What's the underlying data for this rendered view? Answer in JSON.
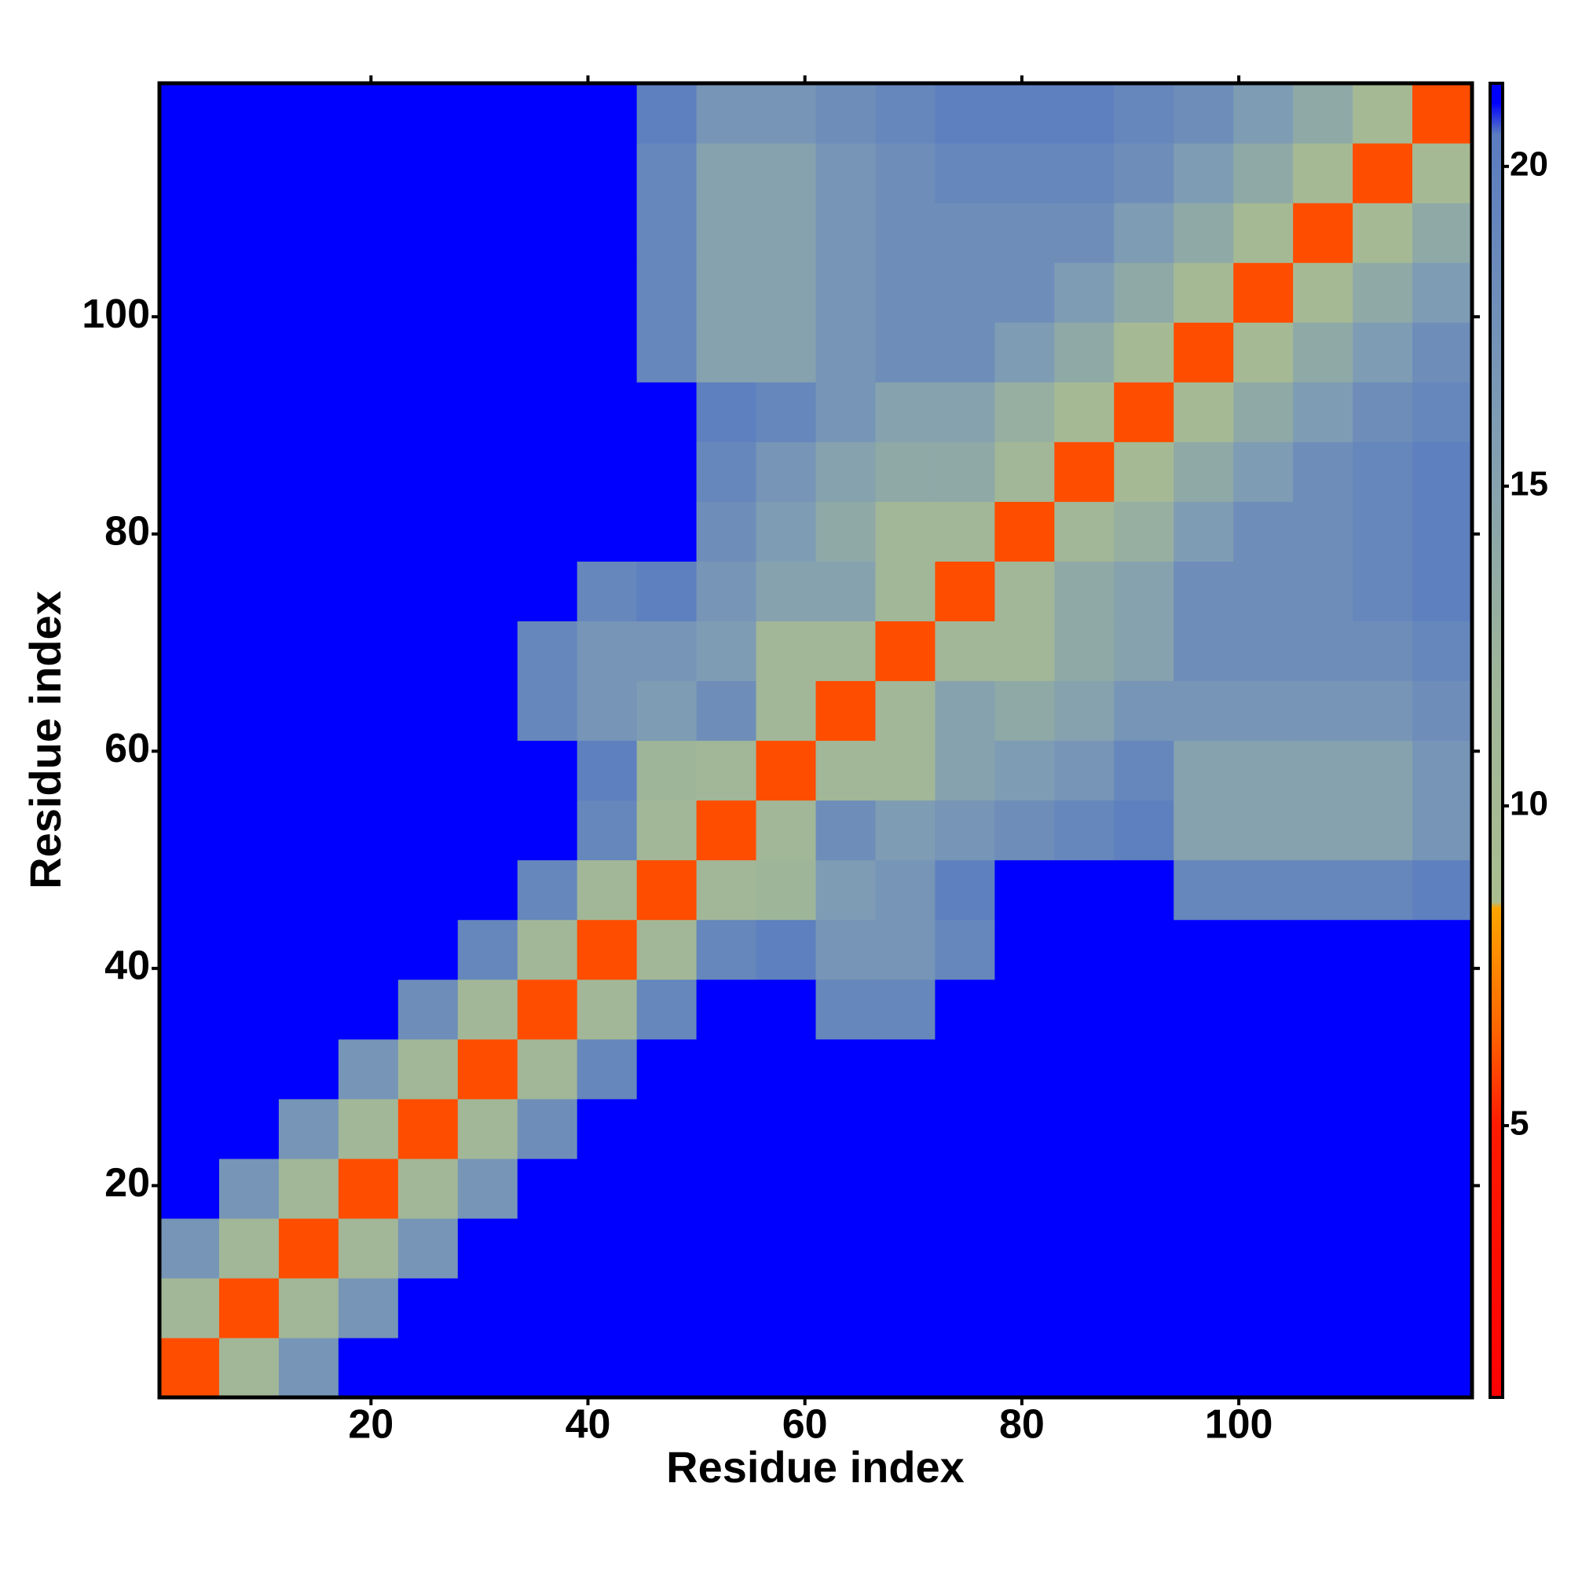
{
  "chart_data": {
    "type": "heatmap",
    "xlabel": "Residue index",
    "ylabel": "Residue index",
    "xlim": [
      0.5,
      121.5
    ],
    "ylim": [
      0.5,
      121.5
    ],
    "xticks": [
      20,
      40,
      60,
      80,
      100
    ],
    "yticks": [
      20,
      40,
      60,
      80,
      100
    ],
    "x_bins": [
      0.5,
      6,
      11.5,
      17,
      22.5,
      28,
      33.5,
      39,
      44.5,
      50,
      55.5,
      61,
      66.5,
      72,
      77.5,
      83,
      88.5,
      94,
      99.5,
      105,
      110.5,
      116,
      121.5
    ],
    "y_bins": [
      0.5,
      6,
      11.5,
      17,
      22.5,
      28,
      33.5,
      39,
      44.5,
      50,
      55.5,
      61,
      66.5,
      72,
      77.5,
      83,
      88.5,
      94,
      99.5,
      105,
      110.5,
      116,
      121.5
    ],
    "z": [
      [
        6,
        11,
        17,
        21,
        21,
        21,
        21,
        21,
        21,
        21,
        21,
        21,
        21,
        21,
        21,
        21,
        21,
        21,
        21,
        21,
        21,
        21
      ],
      [
        11,
        6,
        11,
        17,
        21,
        21,
        21,
        21,
        21,
        21,
        21,
        21,
        21,
        21,
        21,
        21,
        21,
        21,
        21,
        21,
        21,
        21
      ],
      [
        17,
        11,
        6,
        11,
        17,
        21,
        21,
        21,
        21,
        21,
        21,
        21,
        21,
        21,
        21,
        21,
        21,
        21,
        21,
        21,
        21,
        21
      ],
      [
        21,
        17,
        11,
        6,
        11,
        17,
        21,
        21,
        21,
        21,
        21,
        21,
        21,
        21,
        21,
        21,
        21,
        21,
        21,
        21,
        21,
        21
      ],
      [
        21,
        21,
        17,
        11,
        6,
        11,
        18,
        21,
        21,
        21,
        21,
        21,
        21,
        21,
        21,
        21,
        21,
        21,
        21,
        21,
        21,
        21
      ],
      [
        21,
        21,
        21,
        17,
        11,
        6,
        11,
        19,
        21,
        21,
        21,
        21,
        21,
        21,
        21,
        21,
        21,
        21,
        21,
        21,
        21,
        21
      ],
      [
        21,
        21,
        21,
        21,
        18,
        11,
        6,
        11,
        19,
        21,
        21,
        19,
        19,
        21,
        21,
        21,
        21,
        21,
        21,
        21,
        21,
        21
      ],
      [
        21,
        21,
        21,
        21,
        21,
        19,
        11,
        6,
        11,
        19,
        20,
        17,
        17,
        19,
        21,
        21,
        21,
        21,
        21,
        21,
        21,
        21
      ],
      [
        21,
        21,
        21,
        21,
        21,
        21,
        19,
        11,
        6,
        11,
        12,
        16,
        17,
        20,
        21,
        21,
        21,
        19,
        19,
        19,
        19,
        20
      ],
      [
        21,
        21,
        21,
        21,
        21,
        21,
        21,
        19,
        11,
        6,
        11,
        18,
        16,
        17,
        18,
        19,
        20,
        15,
        15,
        15,
        15,
        17
      ],
      [
        21,
        21,
        21,
        21,
        21,
        21,
        21,
        20,
        12,
        11,
        6,
        11,
        11,
        15,
        16,
        17,
        19,
        15,
        15,
        15,
        15,
        17
      ],
      [
        21,
        21,
        21,
        21,
        21,
        21,
        19,
        17,
        16,
        18,
        11,
        6,
        11,
        15,
        14,
        15,
        17,
        17,
        17,
        17,
        17,
        18
      ],
      [
        21,
        21,
        21,
        21,
        21,
        21,
        19,
        17,
        17,
        16,
        11,
        11,
        6,
        11,
        11,
        14,
        15,
        18,
        18,
        18,
        18,
        19
      ],
      [
        21,
        21,
        21,
        21,
        21,
        21,
        21,
        19,
        20,
        17,
        15,
        15,
        11,
        6,
        11,
        14,
        15,
        18,
        18,
        18,
        19,
        20
      ],
      [
        21,
        21,
        21,
        21,
        21,
        21,
        21,
        21,
        21,
        18,
        16,
        14,
        11,
        11,
        6,
        11,
        13,
        16,
        18,
        18,
        19,
        20
      ],
      [
        21,
        21,
        21,
        21,
        21,
        21,
        21,
        21,
        21,
        19,
        17,
        15,
        14,
        14,
        11,
        6,
        10,
        14,
        16,
        18,
        19,
        20
      ],
      [
        21,
        21,
        21,
        21,
        21,
        21,
        21,
        21,
        21,
        20,
        19,
        17,
        15,
        15,
        13,
        10,
        6,
        10,
        14,
        16,
        18,
        19
      ],
      [
        21,
        21,
        21,
        21,
        21,
        21,
        21,
        21,
        19,
        15,
        15,
        17,
        18,
        18,
        16,
        14,
        10,
        6,
        10,
        14,
        16,
        18
      ],
      [
        21,
        21,
        21,
        21,
        21,
        21,
        21,
        21,
        19,
        15,
        15,
        17,
        18,
        18,
        18,
        16,
        14,
        10,
        6,
        10,
        14,
        16
      ],
      [
        21,
        21,
        21,
        21,
        21,
        21,
        21,
        21,
        19,
        15,
        15,
        17,
        18,
        18,
        18,
        18,
        16,
        14,
        10,
        6,
        10,
        14
      ],
      [
        21,
        21,
        21,
        21,
        21,
        21,
        21,
        21,
        19,
        15,
        15,
        17,
        18,
        19,
        19,
        19,
        18,
        16,
        14,
        10,
        6,
        10
      ],
      [
        21,
        21,
        21,
        21,
        21,
        21,
        21,
        21,
        20,
        17,
        17,
        18,
        19,
        20,
        20,
        20,
        19,
        18,
        16,
        14,
        10,
        6
      ]
    ],
    "zlim": [
      0.75,
      21.3
    ],
    "zticks": [
      5,
      10,
      15,
      20
    ],
    "colorscale": [
      {
        "value": 0.75,
        "color": "#ff0000"
      },
      {
        "value": 5,
        "color": "#ff1a00"
      },
      {
        "value": 6.5,
        "color": "#ff6600"
      },
      {
        "value": 8.4,
        "color": "#ffa500"
      },
      {
        "value": 8.5,
        "color": "#a9bd8f"
      },
      {
        "value": 12,
        "color": "#9fb59a"
      },
      {
        "value": 16,
        "color": "#7e9cb4"
      },
      {
        "value": 20.5,
        "color": "#5a7cc0"
      },
      {
        "value": 21,
        "color": "#0000ff"
      },
      {
        "value": 21.3,
        "color": "#0000ff"
      }
    ]
  }
}
